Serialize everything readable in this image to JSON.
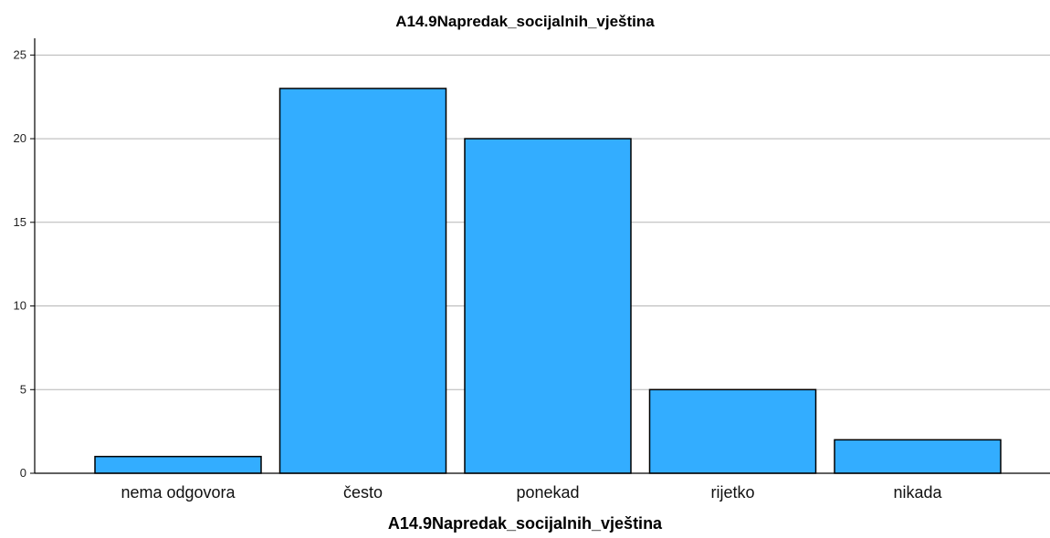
{
  "chart_data": {
    "type": "bar",
    "title": "A14.9Napredak_socijalnih_vještina",
    "xlabel": "A14.9Napredak_socijalnih_vještina",
    "ylabel": "",
    "categories": [
      "nema odgovora",
      "često",
      "ponekad",
      "rijetko",
      "nikada"
    ],
    "values": [
      1,
      23,
      20,
      5,
      2
    ],
    "ylim": [
      0,
      26
    ],
    "yticks": [
      0,
      5,
      10,
      15,
      20,
      25
    ],
    "grid": true,
    "legend": "none",
    "bar_color": "#33adff",
    "bar_edge_color": "#000000",
    "grid_color": "#b5b5b5"
  }
}
